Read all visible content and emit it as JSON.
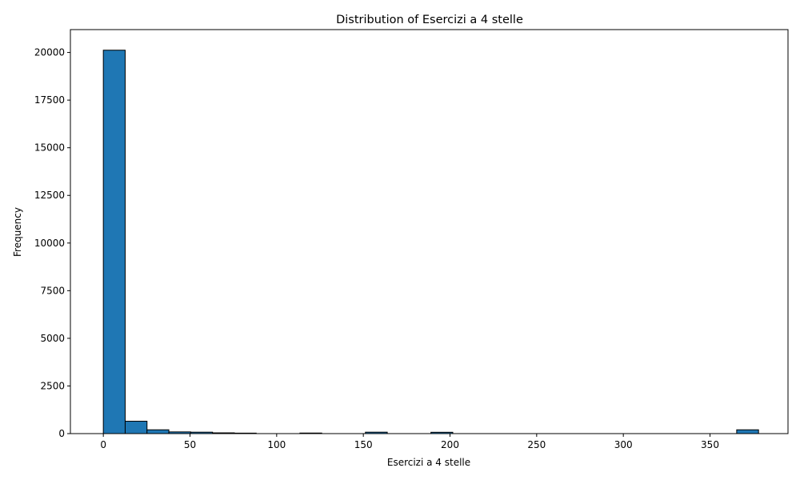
{
  "chart_data": {
    "type": "bar",
    "title": "Distribution of Esercizi a 4 stelle",
    "xlabel": "Esercizi a 4 stelle",
    "ylabel": "Frequency",
    "xlim": [
      -19,
      395
    ],
    "ylim": [
      0,
      21200
    ],
    "xticks": [
      "0",
      "50",
      "100",
      "150",
      "200",
      "250",
      "300",
      "350"
    ],
    "xtick_values": [
      0,
      50,
      100,
      150,
      200,
      250,
      300,
      350
    ],
    "yticks": [
      "0",
      "2500",
      "5000",
      "7500",
      "10000",
      "12500",
      "15000",
      "17500",
      "20000"
    ],
    "ytick_values": [
      0,
      2500,
      5000,
      7500,
      10000,
      12500,
      15000,
      17500,
      20000
    ],
    "bin_start": 0,
    "bin_width": 12.6,
    "values": [
      20120,
      650,
      200,
      90,
      75,
      40,
      25,
      0,
      0,
      30,
      0,
      0,
      75,
      0,
      0,
      70,
      0,
      0,
      0,
      0,
      0,
      0,
      0,
      0,
      0,
      0,
      0,
      0,
      0,
      200
    ],
    "bar_color": "#1f77b4",
    "edge_color": "#000000",
    "grid": false,
    "legend": "none"
  }
}
